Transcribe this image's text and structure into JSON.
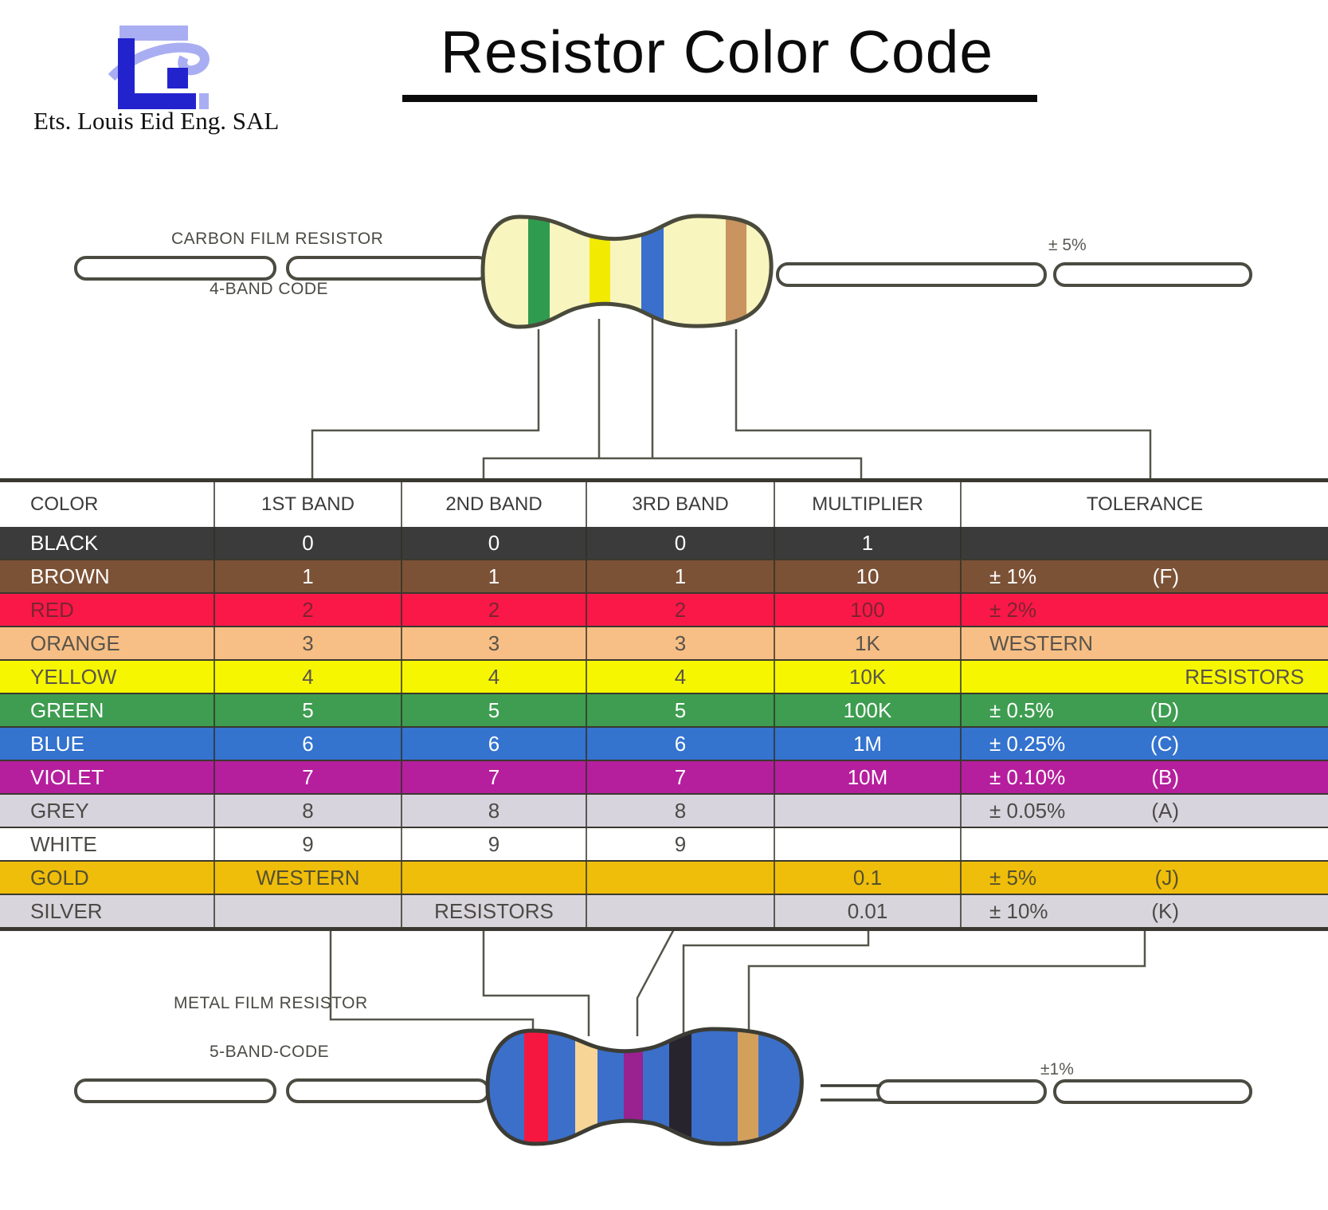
{
  "header": {
    "company": "Ets. Louis Eid Eng. SAL",
    "title": "Resistor Color Code"
  },
  "logo": {
    "dark": "#2323CE",
    "light": "#A9AEF2"
  },
  "carbon_resistor": {
    "label": "CARBON FILM RESISTOR",
    "code_label": "4-BAND CODE",
    "tolerance_note": "± 5%",
    "body_color": "#F8F5BF",
    "outline_color": "#4a4a3c",
    "bands": [
      {
        "name": "green",
        "color": "#2F9B4F"
      },
      {
        "name": "yellow",
        "color": "#F2EA00"
      },
      {
        "name": "blue",
        "color": "#3A70CC"
      },
      {
        "name": "tan",
        "color": "#C9945F"
      }
    ]
  },
  "metal_resistor": {
    "label": "METAL FILM RESISTOR",
    "code_label": "5-BAND-CODE",
    "tolerance_note": "±1%",
    "body_color": "#3B6FC9",
    "outline_color": "#3c3c34",
    "bands": [
      {
        "name": "red",
        "color": "#F5173F"
      },
      {
        "name": "cream",
        "color": "#F6D597"
      },
      {
        "name": "violet",
        "color": "#9A2190"
      },
      {
        "name": "black",
        "color": "#27242E"
      },
      {
        "name": "gold",
        "color": "#D3A05C"
      }
    ]
  },
  "table": {
    "headers": [
      "COLOR",
      "1ST BAND",
      "2ND BAND",
      "3RD BAND",
      "MULTIPLIER",
      "TOLERANCE"
    ],
    "rows": [
      {
        "color": "BLACK",
        "bg": "#3B3B3B",
        "fg": "#FFFFFF",
        "b1": "0",
        "b2": "0",
        "b3": "0",
        "mult": "1",
        "tol": "",
        "letter": "",
        "brand_right": ""
      },
      {
        "color": "BROWN",
        "bg": "#7C5236",
        "fg": "#FFFFFF",
        "b1": "1",
        "b2": "1",
        "b3": "1",
        "mult": "10",
        "tol": "± 1%",
        "letter": "(F)",
        "brand_right": ""
      },
      {
        "color": "RED",
        "bg": "#FA1848",
        "fg": "#7C2430",
        "b1": "2",
        "b2": "2",
        "b3": "2",
        "mult": "100",
        "tol": "± 2%",
        "letter": "",
        "brand_right": ""
      },
      {
        "color": "ORANGE",
        "bg": "#F7BF85",
        "fg": "#5A544C",
        "b1": "3",
        "b2": "3",
        "b3": "3",
        "mult": "1K",
        "tol": "WESTERN",
        "letter": "",
        "brand_right": ""
      },
      {
        "color": "YELLOW",
        "bg": "#F6F600",
        "fg": "#5A544C",
        "b1": "4",
        "b2": "4",
        "b3": "4",
        "mult": "10K",
        "tol": "",
        "letter": "",
        "brand_right": "RESISTORS"
      },
      {
        "color": "GREEN",
        "bg": "#3E9D50",
        "fg": "#FFFFFF",
        "b1": "5",
        "b2": "5",
        "b3": "5",
        "mult": "100K",
        "tol": "± 0.5%",
        "letter": "(D)",
        "brand_right": ""
      },
      {
        "color": "BLUE",
        "bg": "#3473CE",
        "fg": "#FFFFFF",
        "b1": "6",
        "b2": "6",
        "b3": "6",
        "mult": "1M",
        "tol": "± 0.25%",
        "letter": "(C)",
        "brand_right": ""
      },
      {
        "color": "VIOLET",
        "bg": "#B51F9D",
        "fg": "#FFFFFF",
        "b1": "7",
        "b2": "7",
        "b3": "7",
        "mult": "10M",
        "tol": "± 0.10%",
        "letter": "(B)",
        "brand_right": ""
      },
      {
        "color": "GREY",
        "bg": "#D8D4DE",
        "fg": "#4C4A46",
        "b1": "8",
        "b2": "8",
        "b3": "8",
        "mult": "",
        "tol": "± 0.05%",
        "letter": "(A)",
        "brand_right": ""
      },
      {
        "color": "WHITE",
        "bg": "#FFFFFF",
        "fg": "#4C4A46",
        "b1": "9",
        "b2": "9",
        "b3": "9",
        "mult": "",
        "tol": "",
        "letter": "",
        "brand_right": ""
      },
      {
        "color": "GOLD",
        "bg": "#EFBE0A",
        "fg": "#55502F",
        "b1": "WESTERN",
        "b2": "",
        "b3": "",
        "mult": "0.1",
        "tol": "± 5%",
        "letter": "(J)",
        "brand_right": ""
      },
      {
        "color": "SILVER",
        "bg": "#D8D5DC",
        "fg": "#4C4A46",
        "b1": "",
        "b2": "RESISTORS",
        "b3": "",
        "mult": "0.01",
        "tol": "± 10%",
        "letter": "(K)",
        "brand_right": ""
      }
    ]
  }
}
